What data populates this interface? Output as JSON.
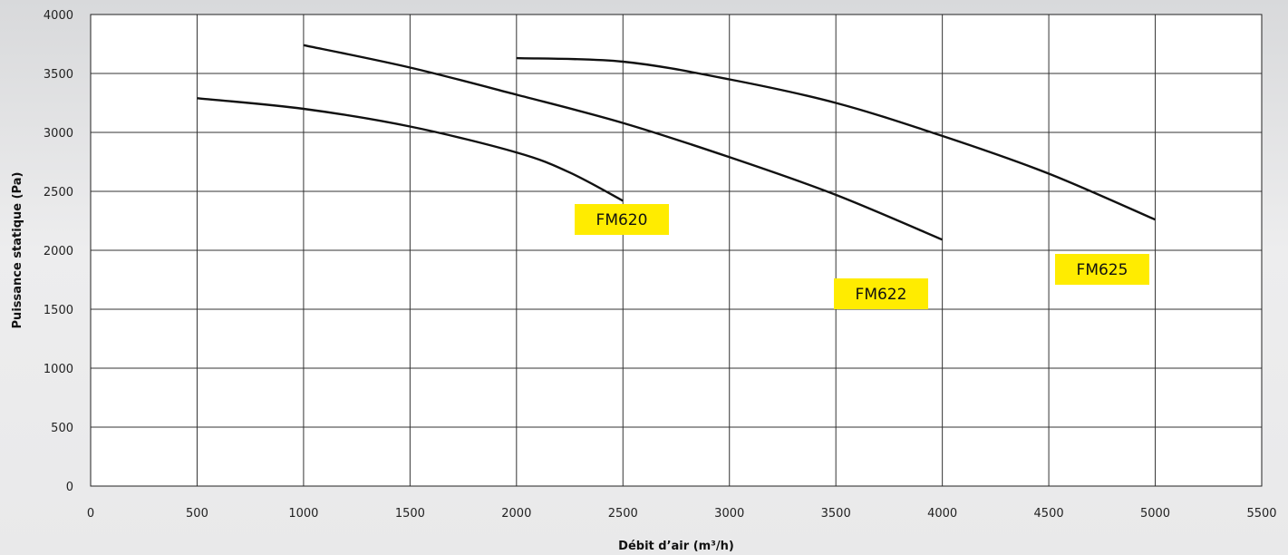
{
  "chart_data": {
    "type": "line",
    "title": "",
    "xlabel": "Débit d’air (m³/h)",
    "ylabel": "Puissance statique (Pa)",
    "xlim": [
      0,
      5500
    ],
    "ylim": [
      0,
      4000
    ],
    "x_ticks": [
      "0",
      "500",
      "1000",
      "1500",
      "2000",
      "2500",
      "3000",
      "3500",
      "4000",
      "4500",
      "5000",
      "5500"
    ],
    "y_ticks": [
      "0",
      "500",
      "1000",
      "1500",
      "2000",
      "2500",
      "3000",
      "3500",
      "4000"
    ],
    "grid": true,
    "legend": "none",
    "series": [
      {
        "name": "FM620",
        "label_color": "#ffec00",
        "x": [
          500,
          1000,
          1500,
          2000,
          2250,
          2500
        ],
        "y": [
          3290,
          3200,
          3050,
          2830,
          2660,
          2420
        ]
      },
      {
        "name": "FM622",
        "label_color": "#ffec00",
        "x": [
          1000,
          1500,
          2000,
          2500,
          3000,
          3500,
          4000
        ],
        "y": [
          3740,
          3550,
          3320,
          3080,
          2790,
          2470,
          2090
        ]
      },
      {
        "name": "FM625",
        "label_color": "#ffec00",
        "x": [
          2000,
          2500,
          3000,
          3500,
          4000,
          4500,
          5000
        ],
        "y": [
          3630,
          3600,
          3450,
          3250,
          2970,
          2650,
          2260
        ]
      }
    ]
  }
}
